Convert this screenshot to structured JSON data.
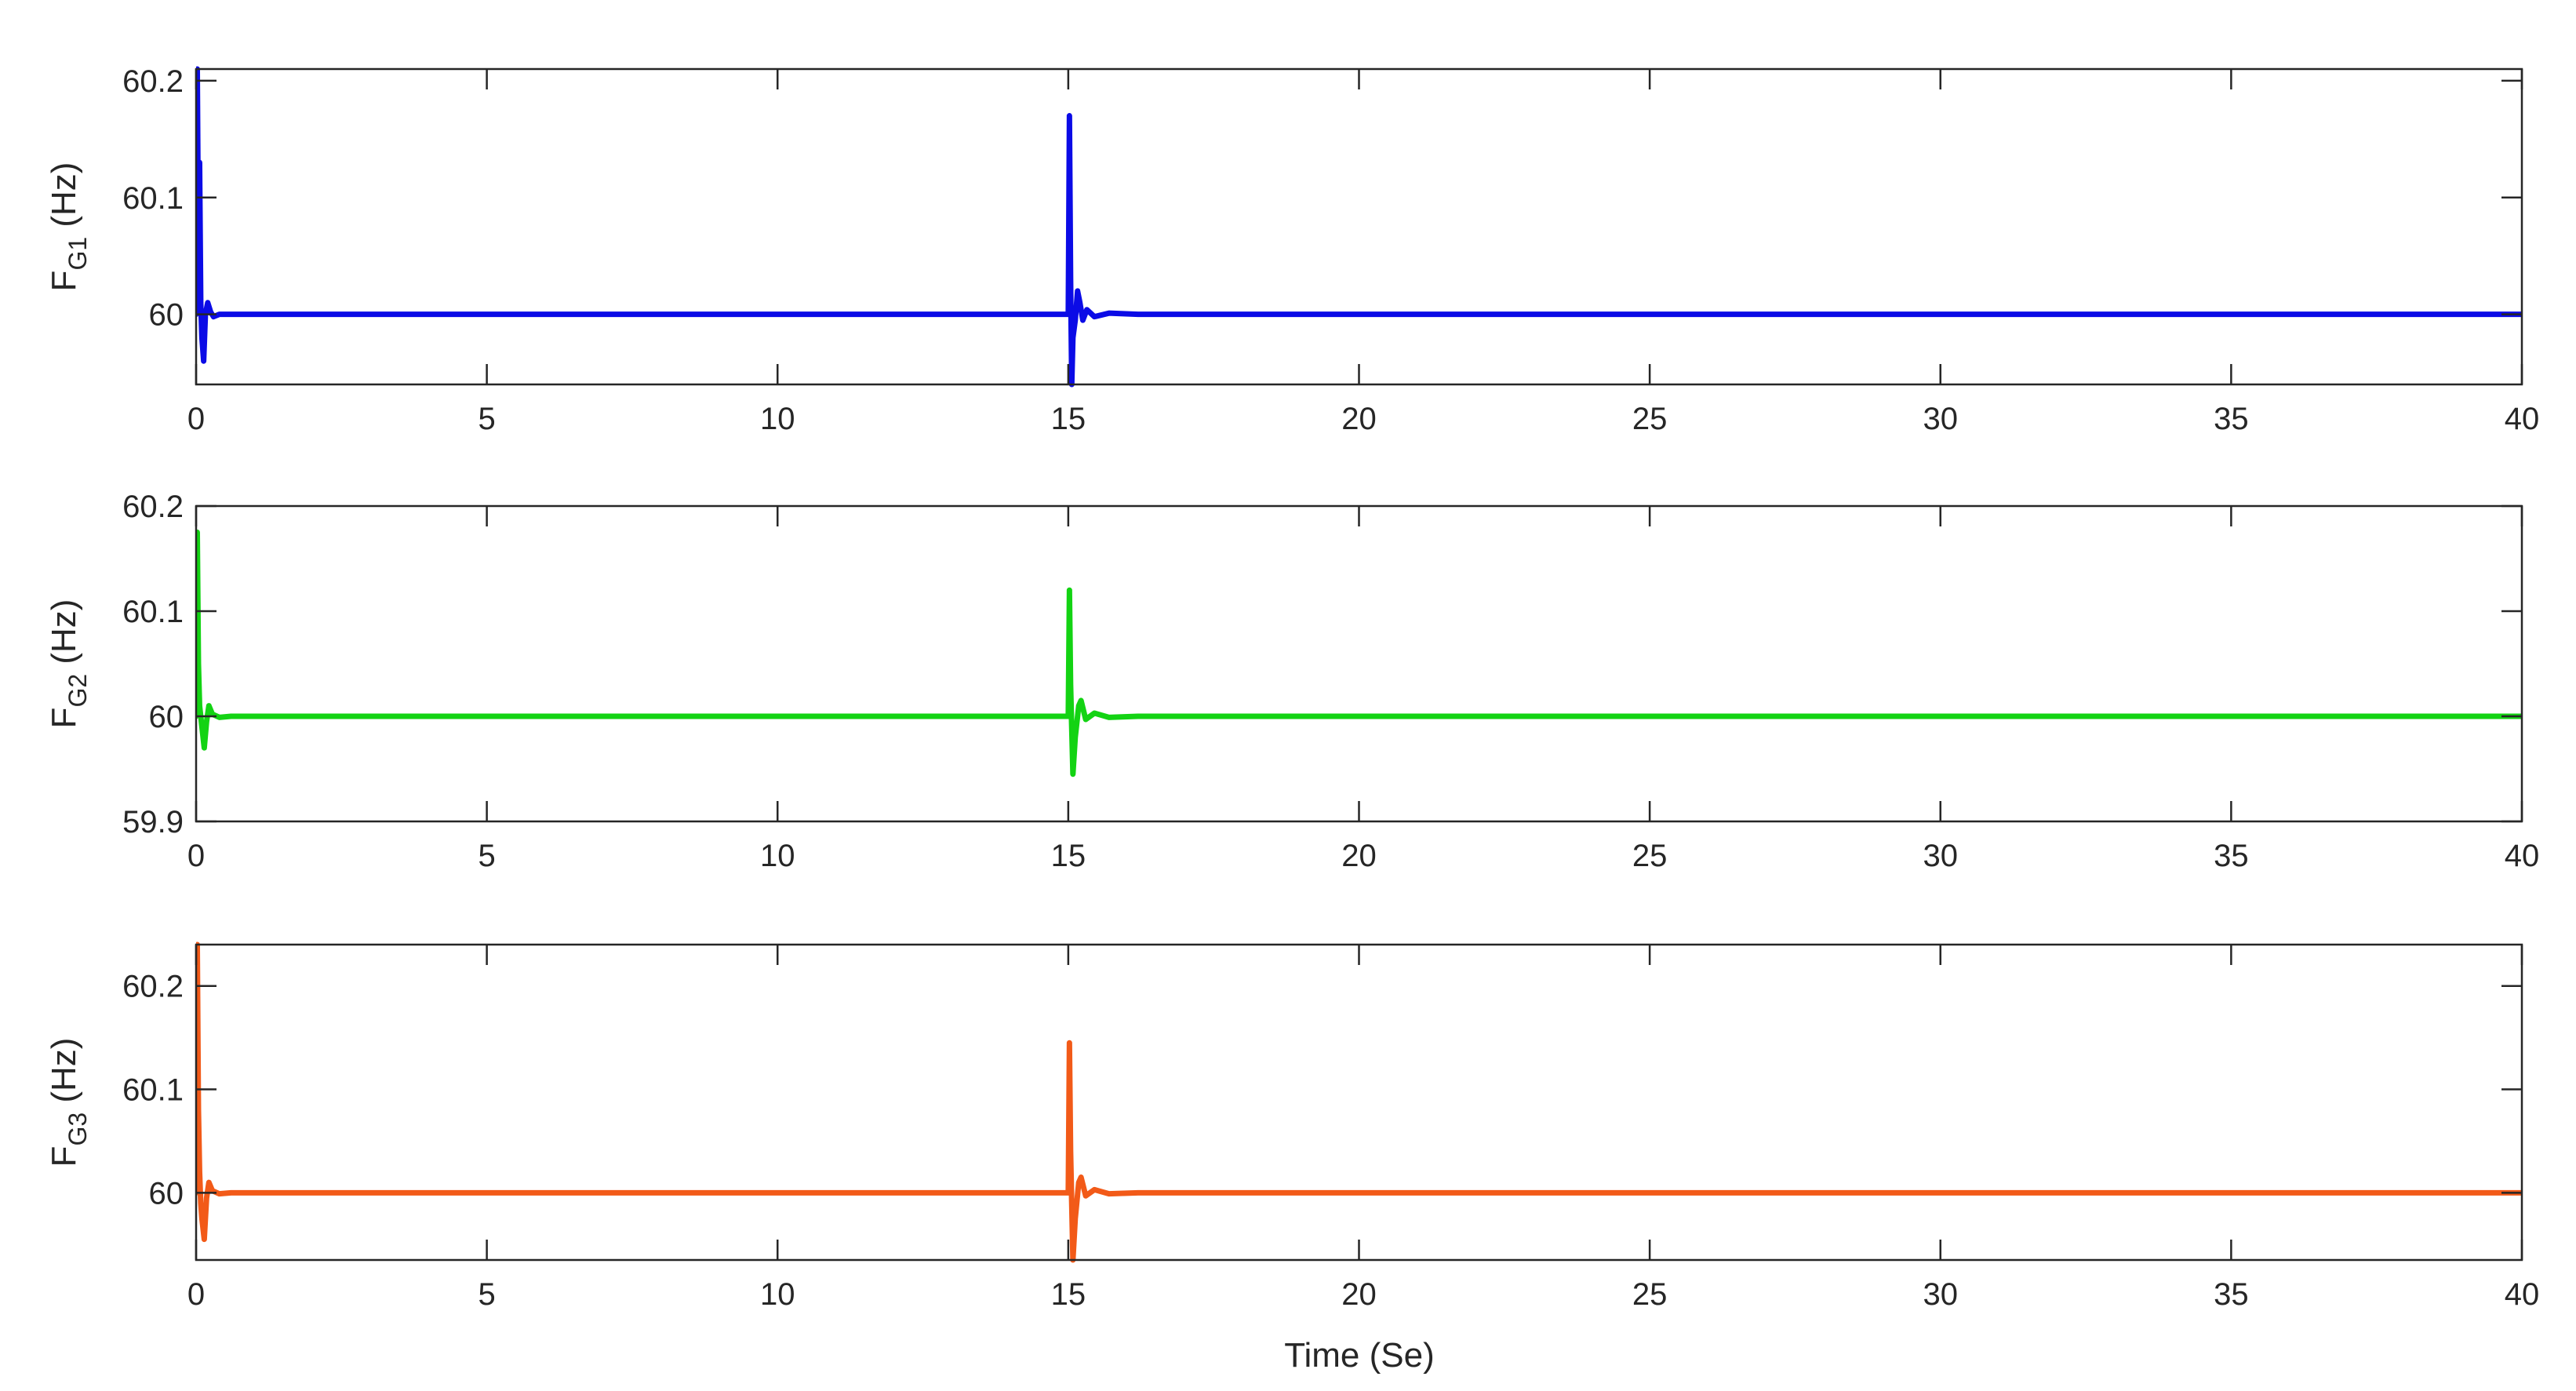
{
  "chart_data": [
    {
      "type": "line",
      "ylabel_main": "F",
      "ylabel_sub": "G1",
      "ylabel_unit": " (Hz)",
      "xlim": [
        0,
        40
      ],
      "ylim": [
        59.94,
        60.21
      ],
      "xticks": [
        "0",
        "5",
        "10",
        "15",
        "20",
        "25",
        "30",
        "35",
        "40"
      ],
      "yticks": [
        "60",
        "60.1",
        "60.2"
      ],
      "color": "#0b0be6",
      "series": [
        {
          "x": [
            0,
            0.02,
            0.04,
            0.06,
            0.08,
            0.1,
            0.13,
            0.16,
            0.2,
            0.25,
            0.3,
            0.4,
            0.6,
            1,
            15,
            15.02,
            15.04,
            15.06,
            15.08,
            15.12,
            15.16,
            15.2,
            15.25,
            15.32,
            15.45,
            15.7,
            16.2,
            40
          ],
          "y": [
            60.0,
            60.21,
            60.06,
            60.13,
            60.01,
            59.98,
            59.96,
            60.0,
            60.01,
            60.002,
            59.998,
            60.0,
            60.0,
            60.0,
            60.0,
            60.17,
            60.03,
            59.94,
            59.98,
            59.995,
            60.02,
            60.01,
            59.995,
            60.004,
            59.998,
            60.001,
            60.0,
            60.0
          ]
        }
      ]
    },
    {
      "type": "line",
      "ylabel_main": "F",
      "ylabel_sub": "G2",
      "ylabel_unit": " (Hz)",
      "xlim": [
        0,
        40
      ],
      "ylim": [
        59.9,
        60.2
      ],
      "xticks": [
        "0",
        "5",
        "10",
        "15",
        "20",
        "25",
        "30",
        "35",
        "40"
      ],
      "yticks": [
        "59.9",
        "60",
        "60.1",
        "60.2"
      ],
      "color": "#13d313",
      "series": [
        {
          "x": [
            0,
            0.02,
            0.04,
            0.06,
            0.08,
            0.1,
            0.14,
            0.18,
            0.22,
            0.28,
            0.4,
            0.6,
            1,
            15,
            15.02,
            15.04,
            15.08,
            15.12,
            15.18,
            15.22,
            15.3,
            15.45,
            15.7,
            16.2,
            40
          ],
          "y": [
            60.0,
            60.175,
            60.05,
            60.01,
            60.0,
            59.99,
            59.97,
            59.995,
            60.01,
            60.002,
            59.999,
            60.0,
            60.0,
            60.0,
            60.12,
            60.03,
            59.945,
            59.98,
            60.01,
            60.015,
            59.997,
            60.003,
            59.999,
            60.0,
            60.0
          ]
        }
      ]
    },
    {
      "type": "line",
      "ylabel_main": "F",
      "ylabel_sub": "G3",
      "ylabel_unit": " (Hz)",
      "xlim": [
        0,
        40
      ],
      "ylim": [
        59.935,
        60.24
      ],
      "xticks": [
        "0",
        "5",
        "10",
        "15",
        "20",
        "25",
        "30",
        "35",
        "40"
      ],
      "yticks": [
        "60",
        "60.1",
        "60.2"
      ],
      "color": "#f25a18",
      "series": [
        {
          "x": [
            0,
            0.02,
            0.04,
            0.06,
            0.08,
            0.1,
            0.14,
            0.18,
            0.22,
            0.28,
            0.4,
            0.6,
            1,
            15,
            15.02,
            15.04,
            15.08,
            15.12,
            15.18,
            15.22,
            15.3,
            15.45,
            15.7,
            16.2,
            40
          ],
          "y": [
            60.0,
            60.24,
            60.08,
            60.02,
            59.99,
            59.975,
            59.955,
            59.995,
            60.01,
            60.002,
            59.999,
            60.0,
            60.0,
            60.0,
            60.145,
            60.04,
            59.935,
            59.975,
            60.01,
            60.015,
            59.997,
            60.003,
            59.999,
            60.0,
            60.0
          ]
        }
      ]
    }
  ],
  "xlabel": "Time (Se)"
}
